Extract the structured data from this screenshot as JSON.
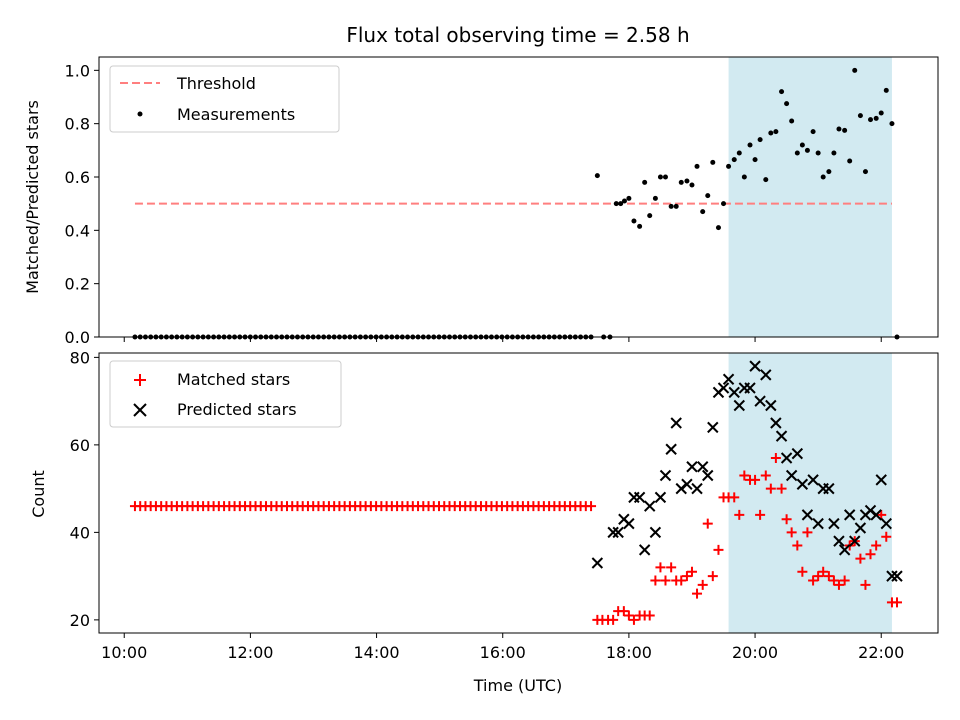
{
  "figure": {
    "title": "Flux total observing time = 2.58 h"
  },
  "chart_data": [
    {
      "type": "scatter",
      "title": "",
      "ylabel": "Matched/Predicted stars",
      "xlabel": "",
      "xlim_hours": [
        9.6,
        22.9
      ],
      "ylim": [
        0,
        1.05
      ],
      "yticks": [
        "0.0",
        "0.2",
        "0.4",
        "0.6",
        "0.8",
        "1.0"
      ],
      "legend": {
        "placement": "top-left",
        "entries": [
          "Threshold",
          "Measurements"
        ]
      },
      "threshold": {
        "name": "Threshold",
        "value": 0.5,
        "x_from": 10.17,
        "x_to": 22.17,
        "color": "#ff7f7f"
      },
      "highlight": {
        "from": 19.58,
        "to": 22.17,
        "color": "#add8e6"
      },
      "series": [
        {
          "name": "Measurements",
          "marker": "dot",
          "color": "#000000",
          "x": [
            17.5,
            17.6,
            17.7,
            17.8,
            17.87,
            17.93,
            18.0,
            18.08,
            18.17,
            18.25,
            18.33,
            18.42,
            18.5,
            18.58,
            18.67,
            18.75,
            18.83,
            18.92,
            19.0,
            19.08,
            19.17,
            19.25,
            19.33,
            19.42,
            19.5,
            19.58,
            19.67,
            19.75,
            19.83,
            19.92,
            20.0,
            20.08,
            20.17,
            20.25,
            20.33,
            20.42,
            20.5,
            20.58,
            20.67,
            20.75,
            20.83,
            20.92,
            21.0,
            21.08,
            21.17,
            21.25,
            21.33,
            21.42,
            21.5,
            21.58,
            21.67,
            21.75,
            21.83,
            21.92,
            22.0,
            22.08,
            22.17,
            22.25
          ],
          "y": [
            0.605,
            0.0,
            0.0,
            0.5,
            0.5,
            0.51,
            0.52,
            0.435,
            0.415,
            0.58,
            0.455,
            0.52,
            0.6,
            0.6,
            0.49,
            0.49,
            0.58,
            0.585,
            0.57,
            0.64,
            0.47,
            0.53,
            0.655,
            0.41,
            0.5,
            0.64,
            0.665,
            0.69,
            0.6,
            0.72,
            0.665,
            0.74,
            0.59,
            0.765,
            0.77,
            0.92,
            0.875,
            0.81,
            0.69,
            0.72,
            0.7,
            0.77,
            0.69,
            0.6,
            0.62,
            0.69,
            0.78,
            0.775,
            0.66,
            1.0,
            0.83,
            0.62,
            0.815,
            0.82,
            0.84,
            0.925,
            0.8,
            0.0
          ]
        },
        {
          "name": "",
          "marker": "dot",
          "color": "#000000",
          "zeros_from": 10.17,
          "zeros_to": 17.4,
          "zeros_count": 88
        }
      ]
    },
    {
      "type": "scatter",
      "title": "",
      "ylabel": "Count",
      "xlabel": "Time (UTC)",
      "xlim_hours": [
        9.6,
        22.9
      ],
      "ylim": [
        17,
        81
      ],
      "yticks": [
        "20",
        "40",
        "60",
        "80"
      ],
      "xticks": [
        "10:00",
        "12:00",
        "14:00",
        "16:00",
        "18:00",
        "20:00",
        "22:00"
      ],
      "legend": {
        "placement": "top-left",
        "entries": [
          "Matched stars",
          "Predicted stars"
        ]
      },
      "highlight": {
        "from": 19.58,
        "to": 22.17,
        "color": "#add8e6"
      },
      "series": [
        {
          "name": "Matched stars",
          "marker": "plus",
          "color": "#ff0000",
          "constant_from": 10.17,
          "constant_to": 17.4,
          "constant_value": 46,
          "constant_count": 88,
          "x": [
            17.5,
            17.58,
            17.67,
            17.75,
            17.83,
            17.92,
            18.0,
            18.08,
            18.17,
            18.25,
            18.33,
            18.42,
            18.5,
            18.58,
            18.67,
            18.75,
            18.83,
            18.92,
            19.0,
            19.08,
            19.17,
            19.25,
            19.33,
            19.42,
            19.5,
            19.58,
            19.67,
            19.75,
            19.83,
            19.92,
            20.0,
            20.08,
            20.17,
            20.25,
            20.33,
            20.42,
            20.5,
            20.58,
            20.67,
            20.75,
            20.83,
            20.92,
            21.0,
            21.08,
            21.17,
            21.25,
            21.33,
            21.42,
            21.5,
            21.58,
            21.67,
            21.75,
            21.83,
            21.92,
            22.0,
            22.08,
            22.17,
            22.25
          ],
          "y": [
            20,
            20,
            20,
            20,
            22,
            22,
            21,
            20,
            21,
            21,
            21,
            29,
            32,
            29,
            32,
            29,
            29,
            30,
            31,
            26,
            28,
            42,
            30,
            36,
            48,
            48,
            48,
            44,
            53,
            52,
            52,
            44,
            53,
            50,
            57,
            50,
            43,
            40,
            37,
            31,
            40,
            29,
            30,
            31,
            30,
            29,
            28,
            29,
            37,
            38,
            34,
            28,
            35,
            37,
            44,
            39,
            24,
            24
          ]
        },
        {
          "name": "Predicted stars",
          "marker": "x",
          "color": "#000000",
          "x": [
            17.5,
            17.75,
            17.83,
            17.92,
            18.0,
            18.08,
            18.17,
            18.25,
            18.33,
            18.42,
            18.5,
            18.58,
            18.67,
            18.75,
            18.83,
            18.92,
            19.0,
            19.08,
            19.17,
            19.25,
            19.33,
            19.42,
            19.5,
            19.58,
            19.67,
            19.75,
            19.83,
            19.92,
            20.0,
            20.08,
            20.17,
            20.25,
            20.33,
            20.42,
            20.5,
            20.58,
            20.67,
            20.75,
            20.83,
            20.92,
            21.0,
            21.08,
            21.17,
            21.25,
            21.33,
            21.42,
            21.5,
            21.58,
            21.67,
            21.75,
            21.83,
            21.92,
            22.0,
            22.08,
            22.17,
            22.25
          ],
          "y": [
            33,
            40,
            40,
            43,
            42,
            48,
            48,
            36,
            46,
            40,
            48,
            53,
            59,
            65,
            50,
            51,
            55,
            50,
            55,
            53,
            64,
            72,
            73,
            75,
            72,
            69,
            73,
            73,
            78,
            70,
            76,
            69,
            65,
            62,
            57,
            53,
            58,
            51,
            44,
            52,
            42,
            50,
            50,
            42,
            38,
            36,
            44,
            38,
            41,
            44,
            45,
            44,
            52,
            42,
            30,
            30
          ]
        }
      ]
    }
  ]
}
